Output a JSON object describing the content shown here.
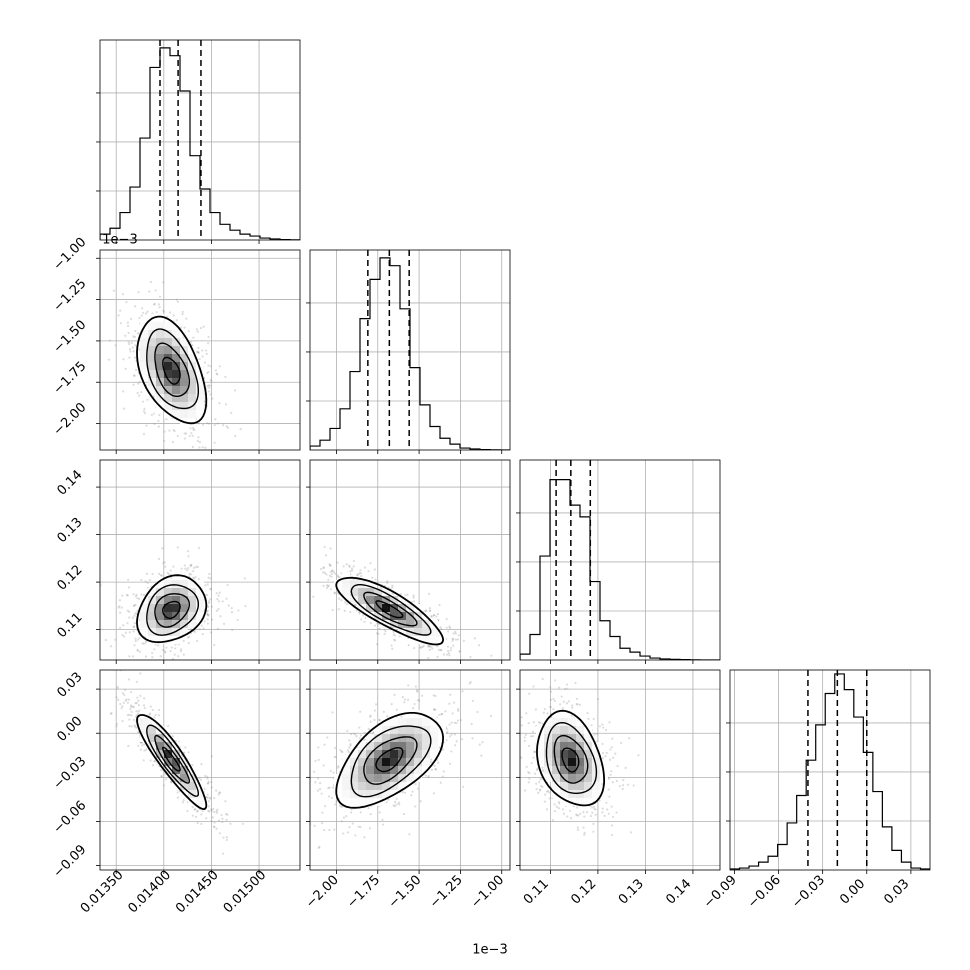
{
  "chart_data": {
    "type": "corner",
    "parameters": [
      {
        "axis": [
          0.01333,
          0.01543
        ],
        "ticks": [
          "0.01350",
          "0.01400",
          "0.01450",
          "0.01500"
        ],
        "tick_values": [
          0.0135,
          0.014,
          0.0145,
          0.015
        ],
        "offset_label": "",
        "quantiles": [
          0.01396,
          0.01415,
          0.01439
        ],
        "hist_max": 1.0,
        "hist_ticks": [
          0.25,
          0.5,
          0.75
        ],
        "hist": [
          0.03,
          0.06,
          0.14,
          0.27,
          0.52,
          0.88,
          0.98,
          0.94,
          0.76,
          0.43,
          0.26,
          0.14,
          0.08,
          0.05,
          0.03,
          0.02,
          0.01,
          0.005,
          0.002,
          0.001
        ]
      },
      {
        "axis": [
          -2.16,
          -0.95
        ],
        "ticks": [
          "−2.00",
          "−1.75",
          "−1.50",
          "−1.25",
          "−1.00"
        ],
        "tick_values": [
          -2.0,
          -1.75,
          -1.5,
          -1.25,
          -1.0
        ],
        "offset_label": "1e−3",
        "quantiles": [
          -1.81,
          -1.68,
          -1.56
        ],
        "hist_max": 1.0,
        "hist_ticks": [
          0.25,
          0.5,
          0.75
        ],
        "hist": [
          0.02,
          0.05,
          0.11,
          0.21,
          0.4,
          0.67,
          0.87,
          0.98,
          0.94,
          0.72,
          0.42,
          0.23,
          0.12,
          0.06,
          0.03,
          0.01,
          0.005,
          0.002,
          0.001,
          0.0
        ]
      },
      {
        "axis": [
          0.1036,
          0.1457
        ],
        "ticks": [
          "0.11",
          "0.12",
          "0.13",
          "0.14"
        ],
        "tick_values": [
          0.11,
          0.12,
          0.13,
          0.14
        ],
        "offset_label": "",
        "quantiles": [
          0.1112,
          0.1143,
          0.1184
        ],
        "hist_max": 1.0,
        "hist_ticks": [
          0.25,
          0.5,
          0.75
        ],
        "hist": [
          0.03,
          0.13,
          0.53,
          0.92,
          0.92,
          0.79,
          0.73,
          0.4,
          0.2,
          0.12,
          0.06,
          0.04,
          0.02,
          0.01,
          0.005,
          0.003,
          0.002,
          0.001,
          0.0,
          0.0
        ]
      },
      {
        "axis": [
          -0.093,
          0.043
        ],
        "ticks": [
          "−0.09",
          "−0.06",
          "−0.03",
          "0.00",
          "0.03"
        ],
        "tick_values": [
          -0.09,
          -0.06,
          -0.03,
          0.0,
          0.03
        ],
        "offset_label": "",
        "quantiles": [
          -0.04,
          -0.02,
          0.0
        ],
        "hist_max": 1.0,
        "hist_ticks": [
          0.25,
          0.5,
          0.75
        ],
        "hist": [
          0.005,
          0.01,
          0.02,
          0.04,
          0.07,
          0.13,
          0.24,
          0.38,
          0.56,
          0.74,
          0.9,
          1.0,
          0.92,
          0.78,
          0.6,
          0.4,
          0.22,
          0.1,
          0.04,
          0.01,
          0.005
        ]
      }
    ],
    "pairs": [
      {
        "row": 1,
        "col": 0,
        "center": [
          0.01408,
          -1.68
        ],
        "spread": [
          0.00018,
          0.16
        ],
        "corr": -0.45
      },
      {
        "row": 2,
        "col": 0,
        "center": [
          0.01408,
          0.1142
        ],
        "spread": [
          0.00018,
          0.0035
        ],
        "corr": 0.25
      },
      {
        "row": 2,
        "col": 1,
        "center": [
          -1.68,
          0.1142
        ],
        "spread": [
          0.16,
          0.0035
        ],
        "corr": -0.82
      },
      {
        "row": 3,
        "col": 0,
        "center": [
          0.01408,
          -0.018
        ],
        "spread": [
          0.00018,
          0.016
        ],
        "corr": -0.9
      },
      {
        "row": 3,
        "col": 1,
        "center": [
          -1.68,
          -0.018
        ],
        "spread": [
          0.16,
          0.016
        ],
        "corr": 0.55
      },
      {
        "row": 3,
        "col": 2,
        "center": [
          0.1142,
          -0.018
        ],
        "spread": [
          0.0035,
          0.016
        ],
        "corr": -0.3
      }
    ],
    "contour_levels_sigma": [
      0.5,
      1.0,
      1.5,
      2.0
    ],
    "bottom_offset_label": "1e−3"
  }
}
